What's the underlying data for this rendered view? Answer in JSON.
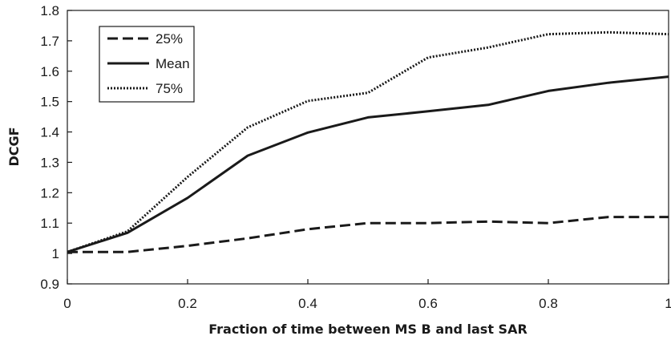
{
  "chart_data": {
    "type": "line",
    "title": "",
    "xlabel": "Fraction of time between MS B and last SAR",
    "ylabel": "DCGF",
    "xlim": [
      0,
      1
    ],
    "ylim": [
      0.9,
      1.8
    ],
    "xticks": [
      0,
      0.2,
      0.4,
      0.6,
      0.8,
      1
    ],
    "xtick_labels": [
      "0",
      "0.2",
      "0.4",
      "0.6",
      "0.8",
      "1"
    ],
    "yticks": [
      0.9,
      1,
      1.1,
      1.2,
      1.3,
      1.4,
      1.5,
      1.6,
      1.7,
      1.8
    ],
    "ytick_labels": [
      "0.9",
      "1",
      "1.1",
      "1.2",
      "1.3",
      "1.4",
      "1.5",
      "1.6",
      "1.7",
      "1.8"
    ],
    "grid": false,
    "legend_position": "top-left",
    "x": [
      0,
      0.1,
      0.2,
      0.3,
      0.4,
      0.5,
      0.6,
      0.7,
      0.8,
      0.9,
      1.0
    ],
    "series": [
      {
        "name": "25%",
        "style": "dashed",
        "color": "#1a1a1a",
        "values": [
          1.005,
          1.005,
          1.025,
          1.05,
          1.08,
          1.1,
          1.1,
          1.105,
          1.1,
          1.12,
          1.12
        ]
      },
      {
        "name": "Mean",
        "style": "solid",
        "color": "#1a1a1a",
        "values": [
          1.005,
          1.068,
          1.183,
          1.322,
          1.398,
          1.448,
          1.468,
          1.489,
          1.535,
          1.562,
          1.582
        ]
      },
      {
        "name": "75%",
        "style": "dotted",
        "color": "#1a1a1a",
        "values": [
          1.005,
          1.073,
          1.252,
          1.415,
          1.502,
          1.529,
          1.645,
          1.678,
          1.722,
          1.728,
          1.722
        ]
      }
    ]
  }
}
